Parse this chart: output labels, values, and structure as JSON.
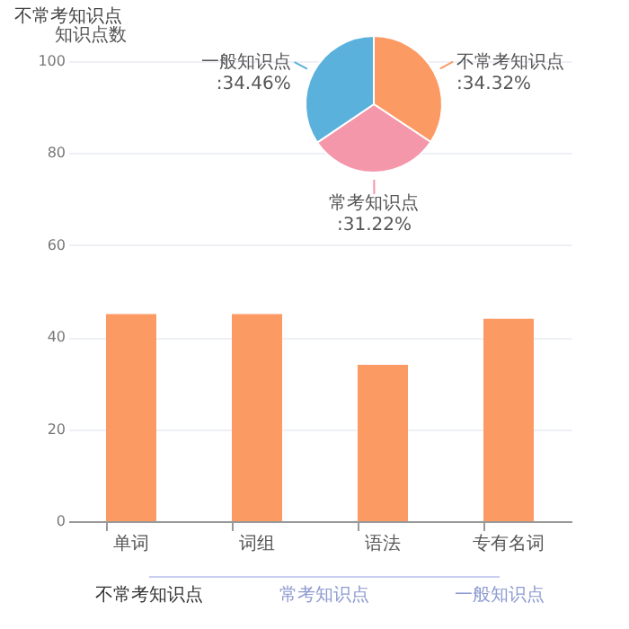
{
  "chart_data": [
    {
      "type": "bar",
      "title": "不常考知识点",
      "ylabel": "知识点数",
      "categories": [
        "单词",
        "词组",
        "语法",
        "专有名词"
      ],
      "values": [
        45,
        45,
        34,
        44
      ],
      "color": "#fc9a64",
      "ylim": [
        0,
        100
      ],
      "yticks": [
        0,
        20,
        40,
        60,
        80,
        100
      ],
      "grid": "y",
      "annotations": [
        "不常考知识点",
        "常考知识点",
        "一般知识点"
      ]
    },
    {
      "type": "pie",
      "categories": [
        "不常考知识点",
        "常考知识点",
        "一般知识点"
      ],
      "values": [
        34.32,
        31.22,
        34.46
      ],
      "value_labels": [
        ":34.32%",
        ":31.22%",
        ":34.46%"
      ],
      "colors": [
        "#fc9a64",
        "#f497aa",
        "#5ab1dc"
      ]
    }
  ]
}
